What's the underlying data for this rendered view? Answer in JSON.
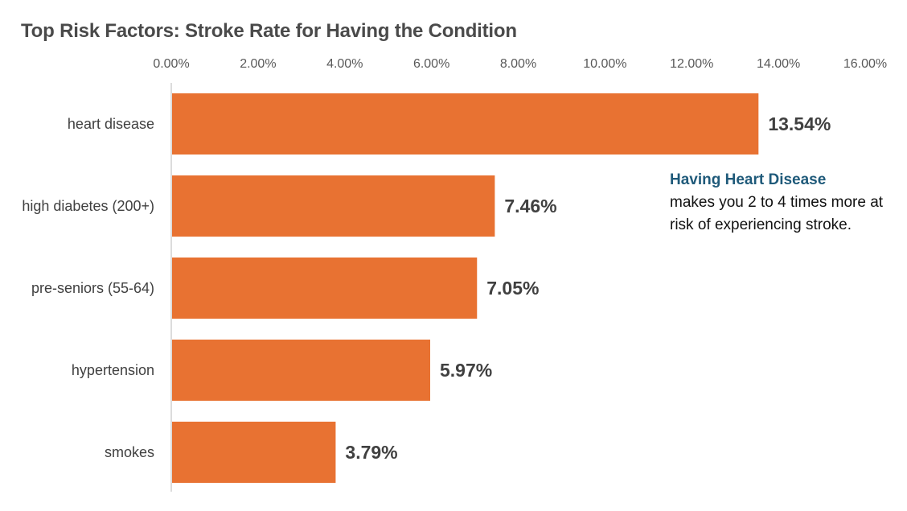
{
  "chart_data": {
    "type": "bar",
    "orientation": "horizontal",
    "title": "Top Risk Factors: Stroke Rate for Having the Condition",
    "categories": [
      "heart disease",
      "high diabetes (200+)",
      "pre-seniors (55-64)",
      "hypertension",
      "smokes"
    ],
    "values": [
      13.54,
      7.46,
      7.05,
      5.97,
      3.79
    ],
    "value_labels": [
      "13.54%",
      "7.46%",
      "7.05%",
      "5.97%",
      "3.79%"
    ],
    "xlim": [
      0,
      16
    ],
    "xticks": [
      0,
      2,
      4,
      6,
      8,
      10,
      12,
      14,
      16
    ],
    "xtick_labels": [
      "0.00%",
      "2.00%",
      "4.00%",
      "6.00%",
      "8.00%",
      "10.00%",
      "12.00%",
      "14.00%",
      "16.00%"
    ],
    "x_axis_position": "top",
    "grid": false,
    "legend": "none",
    "bar_color": "#e87232",
    "annotation": {
      "heading": "Having Heart Disease",
      "body": "makes you 2 to 4 times more at risk of experiencing stroke."
    }
  },
  "colors": {
    "bar": "#e87232",
    "annotation_heading": "#1f5a7a",
    "axis_line": "#d0d0d0"
  }
}
